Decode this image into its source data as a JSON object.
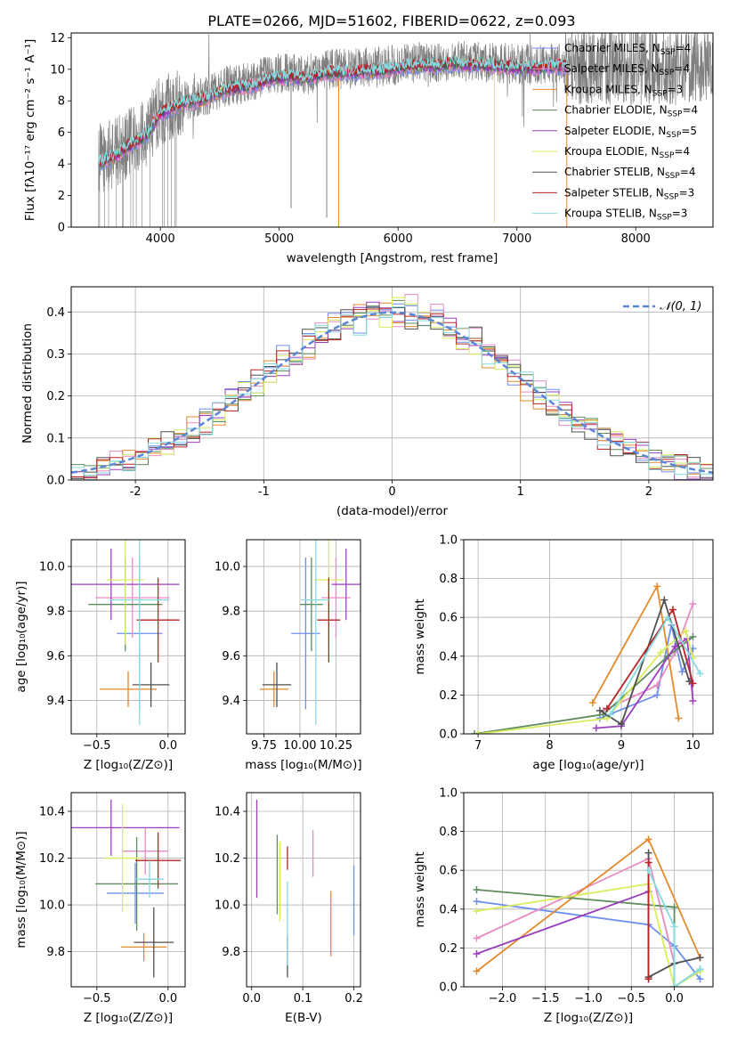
{
  "figure": {
    "title": "PLATE=0266, MJD=51602, FIBERID=0622, z=0.093"
  },
  "colors": {
    "series": [
      "#6d8ff0",
      "#e78bc3",
      "#e38a2d",
      "#5d8c5d",
      "#9b3fbf",
      "#d8ec5c",
      "#505050",
      "#b62425",
      "#86dbe0"
    ],
    "grid": "#b0b0b0",
    "normal": "#5b86d6",
    "spectrum_data": "#808080"
  },
  "model_names": [
    "Chabrier MILES",
    "Salpeter MILES",
    "Kroupa MILES",
    "Chabrier ELODIE",
    "Salpeter ELODIE",
    "Kroupa ELODIE",
    "Chabrier STELIB",
    "Salpeter STELIB",
    "Kroupa STELIB"
  ],
  "chart_data": [
    {
      "id": "spectrum",
      "type": "line",
      "xlabel": "wavelength [Angstrom, rest frame]",
      "ylabel": "Flux [fλ10⁻¹⁷ erg cm⁻² s⁻¹ A⁻¹]",
      "xlim": [
        3250,
        8650
      ],
      "ylim": [
        0,
        12.3
      ],
      "xticks": [
        4000,
        5000,
        6000,
        7000,
        8000
      ],
      "yticks": [
        0,
        2,
        4,
        6,
        8,
        10,
        12
      ],
      "grid": false,
      "legend_position": "upper right",
      "legend": [
        {
          "label": "Chabrier MILES, N",
          "sub": "SSP",
          "tail": "=4",
          "color": "#6d8ff0"
        },
        {
          "label": "Salpeter MILES, N",
          "sub": "SSP",
          "tail": "=4",
          "color": "#e78bc3"
        },
        {
          "label": "Kroupa MILES, N",
          "sub": "SSP",
          "tail": "=3",
          "color": "#e38a2d"
        },
        {
          "label": "Chabrier ELODIE, N",
          "sub": "SSP",
          "tail": "=4",
          "color": "#5d8c5d"
        },
        {
          "label": "Salpeter ELODIE, N",
          "sub": "SSP",
          "tail": "=5",
          "color": "#9b3fbf"
        },
        {
          "label": "Kroupa ELODIE, N",
          "sub": "SSP",
          "tail": "=4",
          "color": "#d8ec5c"
        },
        {
          "label": "Chabrier STELIB, N",
          "sub": "SSP",
          "tail": "=4",
          "color": "#505050"
        },
        {
          "label": "Salpeter STELIB, N",
          "sub": "SSP",
          "tail": "=3",
          "color": "#b62425"
        },
        {
          "label": "Kroupa STELIB, N",
          "sub": "SSP",
          "tail": "=3",
          "color": "#86dbe0"
        }
      ],
      "continuum": [
        [
          3480,
          4.3
        ],
        [
          3600,
          4.6
        ],
        [
          3700,
          5.2
        ],
        [
          3800,
          5.6
        ],
        [
          3900,
          6.2
        ],
        [
          4000,
          7.4
        ],
        [
          4100,
          7.8
        ],
        [
          4200,
          8.1
        ],
        [
          4300,
          8.2
        ],
        [
          4400,
          8.4
        ],
        [
          4500,
          8.8
        ],
        [
          4600,
          9.0
        ],
        [
          4700,
          9.1
        ],
        [
          4800,
          9.2
        ],
        [
          4900,
          9.6
        ],
        [
          5000,
          9.7
        ],
        [
          5100,
          9.8
        ],
        [
          5200,
          9.6
        ],
        [
          5300,
          9.8
        ],
        [
          5400,
          10.0
        ],
        [
          5500,
          10.0
        ],
        [
          5600,
          10.0
        ],
        [
          5700,
          10.1
        ],
        [
          5800,
          10.1
        ],
        [
          5900,
          10.2
        ],
        [
          6000,
          10.3
        ],
        [
          6100,
          10.4
        ],
        [
          6200,
          10.5
        ],
        [
          6300,
          10.4
        ],
        [
          6400,
          10.5
        ],
        [
          6500,
          10.6
        ],
        [
          6600,
          10.5
        ],
        [
          6700,
          10.5
        ],
        [
          6800,
          10.4
        ],
        [
          6900,
          10.4
        ],
        [
          7000,
          10.3
        ],
        [
          7100,
          10.3
        ],
        [
          7200,
          10.3
        ],
        [
          7300,
          10.4
        ],
        [
          7420,
          10.4
        ]
      ],
      "data_range": [
        3480,
        8650
      ],
      "spikes_down": [
        [
          5100,
          1.2
        ],
        [
          5400,
          0.6
        ],
        [
          5500,
          0.0
        ],
        [
          6810,
          0.3
        ],
        [
          7420,
          0.0
        ]
      ]
    },
    {
      "id": "residuals",
      "type": "histogram",
      "xlabel": "(data-model)/error",
      "ylabel": "Normed distribution",
      "xlim": [
        -2.5,
        2.5
      ],
      "ylim": [
        0,
        0.46
      ],
      "xticks": [
        -2,
        -1,
        0,
        1,
        2
      ],
      "yticks": [
        0.0,
        0.1,
        0.2,
        0.3,
        0.4
      ],
      "grid": true,
      "bin_width": 0.1,
      "legend": [
        {
          "label": "𝒩(0, 1)"
        }
      ],
      "legend_position": "upper right",
      "normal": {
        "mu": 0,
        "sigma": 1
      }
    },
    {
      "id": "age-Z",
      "type": "errorbar",
      "xlabel": "Z [log₁₀(Z/Z⊙)]",
      "ylabel": "age  [log₁₀(age/yr)]",
      "xlim": [
        -0.68,
        0.12
      ],
      "ylim": [
        9.25,
        10.12
      ],
      "xticks": [
        -0.5,
        0.0
      ],
      "xtick_labels": [
        "−0.5",
        "0.0"
      ],
      "yticks": [
        9.4,
        9.6,
        9.8,
        10.0
      ],
      "grid": true,
      "points": [
        {
          "c": 0,
          "x": -0.2,
          "xe": 0.16,
          "y": 9.7,
          "ye": 0.34
        },
        {
          "c": 1,
          "x": -0.25,
          "xe": 0.26,
          "y": 9.86,
          "ye": 0.18
        },
        {
          "c": 2,
          "x": -0.28,
          "xe": 0.2,
          "y": 9.45,
          "ye": 0.08
        },
        {
          "c": 3,
          "x": -0.3,
          "xe": 0.26,
          "y": 9.83,
          "ye": 0.21
        },
        {
          "c": 4,
          "x": -0.4,
          "xe": 0.48,
          "y": 9.92,
          "ye": 0.16
        },
        {
          "c": 5,
          "x": -0.3,
          "xe": 0.13,
          "y": 9.94,
          "ye": 0.29
        },
        {
          "c": 6,
          "x": -0.12,
          "xe": 0.13,
          "y": 9.47,
          "ye": 0.1
        },
        {
          "c": 7,
          "x": -0.07,
          "xe": 0.15,
          "y": 9.76,
          "ye": 0.19
        },
        {
          "c": 8,
          "x": -0.2,
          "xe": 0.21,
          "y": 9.85,
          "ye": 0.56
        }
      ]
    },
    {
      "id": "age-mass",
      "type": "errorbar",
      "xlabel": "mass [log₁₀(M/M⊙)]",
      "ylabel": "",
      "xlim": [
        9.63,
        10.42
      ],
      "ylim": [
        9.25,
        10.12
      ],
      "xticks": [
        9.75,
        10.0,
        10.25
      ],
      "xtick_labels": [
        "9.75",
        "10.00",
        "10.25"
      ],
      "yticks": [
        9.4,
        9.6,
        9.8,
        10.0
      ],
      "grid": true,
      "points": [
        {
          "c": 0,
          "x": 10.04,
          "xe": 0.1,
          "y": 9.7,
          "ye": 0.34
        },
        {
          "c": 1,
          "x": 10.25,
          "xe": 0.1,
          "y": 9.86,
          "ye": 0.18
        },
        {
          "c": 2,
          "x": 9.82,
          "xe": 0.1,
          "y": 9.45,
          "ye": 0.08
        },
        {
          "c": 3,
          "x": 10.08,
          "xe": 0.08,
          "y": 9.83,
          "ye": 0.21
        },
        {
          "c": 4,
          "x": 10.32,
          "xe": 0.1,
          "y": 9.92,
          "ye": 0.16
        },
        {
          "c": 5,
          "x": 10.2,
          "xe": 0.1,
          "y": 9.94,
          "ye": 0.29
        },
        {
          "c": 6,
          "x": 9.84,
          "xe": 0.1,
          "y": 9.47,
          "ye": 0.1
        },
        {
          "c": 7,
          "x": 10.2,
          "xe": 0.08,
          "y": 9.76,
          "ye": 0.19
        },
        {
          "c": 8,
          "x": 10.11,
          "xe": 0.1,
          "y": 9.85,
          "ye": 0.56
        }
      ]
    },
    {
      "id": "weight-age",
      "type": "line",
      "xlabel": "age  [log₁₀(age/yr)]",
      "ylabel": "mass weight",
      "xlim": [
        6.8,
        10.28
      ],
      "ylim": [
        0,
        1.0
      ],
      "xticks": [
        7,
        8,
        9,
        10
      ],
      "yticks": [
        0.0,
        0.2,
        0.4,
        0.6,
        0.8,
        1.0
      ],
      "grid": true,
      "series": [
        {
          "c": 0,
          "points": [
            [
              8.7,
              0.08
            ],
            [
              9.5,
              0.2
            ],
            [
              9.7,
              0.56
            ],
            [
              9.85,
              0.32
            ],
            [
              10.0,
              0.44
            ]
          ]
        },
        {
          "c": 1,
          "points": [
            [
              8.75,
              0.12
            ],
            [
              9.5,
              0.25
            ],
            [
              9.75,
              0.42
            ],
            [
              10.0,
              0.67
            ]
          ]
        },
        {
          "c": 2,
          "points": [
            [
              8.6,
              0.16
            ],
            [
              9.5,
              0.76
            ],
            [
              9.8,
              0.08
            ]
          ]
        },
        {
          "c": 3,
          "points": [
            [
              6.95,
              0.0
            ],
            [
              8.75,
              0.1
            ],
            [
              9.65,
              0.4
            ],
            [
              10.0,
              0.5
            ]
          ]
        },
        {
          "c": 4,
          "points": [
            [
              8.65,
              0.03
            ],
            [
              9.0,
              0.04
            ],
            [
              9.75,
              0.45
            ],
            [
              9.92,
              0.49
            ],
            [
              10.0,
              0.17
            ]
          ]
        },
        {
          "c": 5,
          "points": [
            [
              7.0,
              0.0
            ],
            [
              8.8,
              0.08
            ],
            [
              9.55,
              0.42
            ],
            [
              9.9,
              0.53
            ],
            [
              10.0,
              0.39
            ]
          ]
        },
        {
          "c": 6,
          "points": [
            [
              8.7,
              0.12
            ],
            [
              9.0,
              0.05
            ],
            [
              9.6,
              0.69
            ],
            [
              9.95,
              0.27
            ]
          ]
        },
        {
          "c": 7,
          "points": [
            [
              8.8,
              0.13
            ],
            [
              9.72,
              0.64
            ],
            [
              10.0,
              0.26
            ]
          ]
        },
        {
          "c": 8,
          "points": [
            [
              8.85,
              0.1
            ],
            [
              9.65,
              0.6
            ],
            [
              10.1,
              0.31
            ]
          ]
        }
      ]
    },
    {
      "id": "mass-Z",
      "type": "errorbar",
      "xlabel": "Z [log₁₀(Z/Z⊙)]",
      "ylabel": "mass [log₁₀(M/M⊙)]",
      "xlim": [
        -0.68,
        0.12
      ],
      "ylim": [
        9.65,
        10.48
      ],
      "xticks": [
        -0.5,
        0.0
      ],
      "xtick_labels": [
        "−0.5",
        "0.0"
      ],
      "yticks": [
        9.8,
        10.0,
        10.2,
        10.4
      ],
      "grid": true,
      "points": [
        {
          "c": 0,
          "x": -0.23,
          "xe": 0.2,
          "y": 10.05,
          "ye": 0.13
        },
        {
          "c": 1,
          "x": -0.16,
          "xe": 0.16,
          "y": 10.23,
          "ye": 0.1
        },
        {
          "c": 2,
          "x": -0.17,
          "xe": 0.16,
          "y": 9.82,
          "ye": 0.06
        },
        {
          "c": 3,
          "x": -0.22,
          "xe": 0.29,
          "y": 10.09,
          "ye": 0.2
        },
        {
          "c": 4,
          "x": -0.4,
          "xe": 0.48,
          "y": 10.33,
          "ye": 0.12
        },
        {
          "c": 5,
          "x": -0.32,
          "xe": 0.13,
          "y": 10.2,
          "ye": 0.23
        },
        {
          "c": 6,
          "x": -0.1,
          "xe": 0.14,
          "y": 9.84,
          "ye": 0.15
        },
        {
          "c": 7,
          "x": -0.07,
          "xe": 0.16,
          "y": 10.19,
          "ye": 0.12
        },
        {
          "c": 8,
          "x": -0.13,
          "xe": 0.1,
          "y": 10.11,
          "ye": 0.08
        }
      ]
    },
    {
      "id": "mass-ebv",
      "type": "errorbar",
      "xlabel": "E(B-V)",
      "ylabel": "",
      "xlim": [
        -0.01,
        0.213
      ],
      "ylim": [
        9.65,
        10.48
      ],
      "xticks": [
        0.0,
        0.1,
        0.2
      ],
      "xtick_labels": [
        "0.0",
        "0.1",
        "0.2"
      ],
      "yticks": [
        9.8,
        10.0,
        10.2,
        10.4
      ],
      "grid": true,
      "points": [
        {
          "c": 0,
          "x": 0.2,
          "xe": 0,
          "y": 10.02,
          "ye": 0.15
        },
        {
          "c": 1,
          "x": 0.12,
          "xe": 0,
          "y": 10.22,
          "ye": 0.1
        },
        {
          "c": 2,
          "x": 0.155,
          "xe": 0,
          "y": 9.92,
          "ye": 0.14
        },
        {
          "c": 3,
          "x": 0.05,
          "xe": 0,
          "y": 10.13,
          "ye": 0.17
        },
        {
          "c": 4,
          "x": 0.01,
          "xe": 0,
          "y": 10.24,
          "ye": 0.21
        },
        {
          "c": 5,
          "x": 0.055,
          "xe": 0,
          "y": 10.1,
          "ye": 0.17
        },
        {
          "c": 6,
          "x": 0.07,
          "xe": 0,
          "y": 9.78,
          "ye": 0.09
        },
        {
          "c": 7,
          "x": 0.07,
          "xe": 0,
          "y": 10.2,
          "ye": 0.05
        },
        {
          "c": 8,
          "x": 0.07,
          "xe": 0,
          "y": 9.92,
          "ye": 0.18
        }
      ]
    },
    {
      "id": "weight-Z",
      "type": "line",
      "xlabel": "Z [log₁₀(Z/Z⊙)]",
      "ylabel": "mass weight",
      "xlim": [
        -2.45,
        0.45
      ],
      "ylim": [
        0,
        1.0
      ],
      "xticks": [
        -2.0,
        -1.5,
        -1.0,
        -0.5,
        0.0
      ],
      "xtick_labels": [
        "−2.0",
        "−1.5",
        "−1.0",
        "−0.5",
        "0.0"
      ],
      "yticks": [
        0.0,
        0.2,
        0.4,
        0.6,
        0.8,
        1.0
      ],
      "grid": true,
      "series": [
        {
          "c": 0,
          "points": [
            [
              -2.3,
              0.44
            ],
            [
              -0.3,
              0.32
            ],
            [
              0.0,
              0.21
            ],
            [
              0.3,
              0.04
            ]
          ]
        },
        {
          "c": 1,
          "points": [
            [
              -2.3,
              0.25
            ],
            [
              -0.3,
              0.66
            ],
            [
              0.0,
              0.12
            ]
          ]
        },
        {
          "c": 2,
          "points": [
            [
              -2.3,
              0.08
            ],
            [
              -0.3,
              0.76
            ],
            [
              0.3,
              0.15
            ]
          ]
        },
        {
          "c": 3,
          "points": [
            [
              -2.3,
              0.5
            ],
            [
              0.0,
              0.41
            ],
            [
              0.0,
              0.0
            ],
            [
              0.3,
              0.09
            ]
          ]
        },
        {
          "c": 4,
          "points": [
            [
              -2.3,
              0.17
            ],
            [
              -0.3,
              0.49
            ],
            [
              -0.3,
              0.04
            ]
          ]
        },
        {
          "c": 5,
          "points": [
            [
              -2.3,
              0.39
            ],
            [
              -0.3,
              0.53
            ],
            [
              0.0,
              0.0
            ],
            [
              0.3,
              0.08
            ]
          ]
        },
        {
          "c": 6,
          "points": [
            [
              -0.3,
              0.69
            ],
            [
              -0.3,
              0.05
            ],
            [
              0.0,
              0.12
            ],
            [
              0.3,
              0.15
            ]
          ]
        },
        {
          "c": 7,
          "points": [
            [
              -0.3,
              0.64
            ],
            [
              -0.3,
              0.04
            ]
          ]
        },
        {
          "c": 8,
          "points": [
            [
              -0.3,
              0.6
            ],
            [
              0.0,
              0.31
            ],
            [
              0.0,
              0.0
            ],
            [
              0.3,
              0.09
            ]
          ]
        }
      ]
    }
  ]
}
